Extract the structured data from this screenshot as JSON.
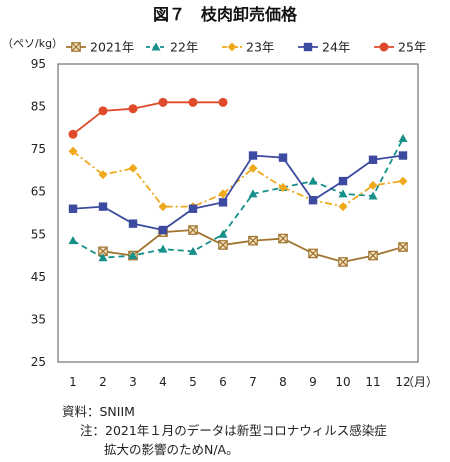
{
  "chart_data": {
    "type": "line",
    "title": "図７　枝肉卸売価格",
    "ylabel": "（ペソ/kg）",
    "xlabel": "（月）",
    "categories": [
      "1",
      "2",
      "3",
      "4",
      "5",
      "6",
      "7",
      "8",
      "9",
      "10",
      "11",
      "12"
    ],
    "ylim": [
      25,
      95
    ],
    "yticks": [
      25,
      35,
      45,
      55,
      65,
      75,
      85,
      95
    ],
    "grid": false,
    "legend_position": "top",
    "series": [
      {
        "name": "2021年",
        "color": "#a0732f",
        "marker": "x-box",
        "dash": "solid",
        "values": [
          null,
          51,
          50,
          55.5,
          56,
          52.5,
          53.5,
          54,
          50.5,
          48.5,
          50,
          52
        ]
      },
      {
        "name": "22年",
        "color": "#17908a",
        "marker": "triangle",
        "dash": "dash",
        "values": [
          53.5,
          49.5,
          50,
          51.5,
          51,
          55,
          64.5,
          66,
          67.5,
          64.5,
          64,
          77.5
        ]
      },
      {
        "name": "23年",
        "color": "#f0a91c",
        "marker": "diamond",
        "dash": "dashdot",
        "values": [
          74.5,
          69,
          70.5,
          61.5,
          61.5,
          64.5,
          70.5,
          66,
          63,
          61.5,
          66.5,
          67.5
        ]
      },
      {
        "name": "24年",
        "color": "#3c4aa0",
        "marker": "square",
        "dash": "solid",
        "values": [
          61,
          61.5,
          57.5,
          56,
          61,
          62.5,
          73.5,
          73,
          63,
          67.5,
          72.5,
          73.5
        ]
      },
      {
        "name": "25年",
        "color": "#e04a2a",
        "marker": "circle",
        "dash": "solid",
        "values": [
          78.5,
          84,
          84.5,
          86,
          86,
          86,
          null,
          null,
          null,
          null,
          null,
          null
        ]
      }
    ]
  },
  "notes": {
    "source": "資料：SNIIM",
    "note_line1": "注：2021年１月のデータは新型コロナウィルス感染症",
    "note_line2": "拡大の影響のためN/A。"
  }
}
